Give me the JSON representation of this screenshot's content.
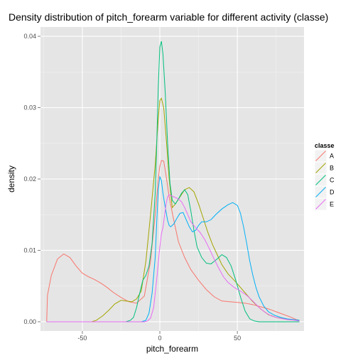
{
  "chart_data": {
    "type": "line",
    "title": "Density distribution of pitch_forearm variable for different activity (classe)",
    "xlabel": "pitch_forearm",
    "ylabel": "density",
    "xlim": [
      -77,
      93
    ],
    "ylim": [
      -0.0013,
      0.0413
    ],
    "x_ticks": [
      -50,
      0,
      50
    ],
    "x_tick_labels": [
      "-50",
      "0",
      "50"
    ],
    "y_ticks": [
      0,
      0.01,
      0.02,
      0.03,
      0.04
    ],
    "y_tick_labels": [
      "0.00",
      "0.01",
      "0.02",
      "0.03",
      "0.04"
    ],
    "grid": true,
    "legend": {
      "title": "classe",
      "position": "right"
    },
    "series": [
      {
        "name": "A",
        "color": "#F8766D",
        "points": [
          [
            -73,
            0
          ],
          [
            -72.5,
            0.0037
          ],
          [
            -70,
            0.0065
          ],
          [
            -66,
            0.0088
          ],
          [
            -62,
            0.0095
          ],
          [
            -58,
            0.009
          ],
          [
            -54,
            0.0078
          ],
          [
            -50,
            0.0068
          ],
          [
            -46,
            0.0063
          ],
          [
            -42,
            0.0059
          ],
          [
            -38,
            0.0054
          ],
          [
            -34,
            0.0048
          ],
          [
            -30,
            0.0041
          ],
          [
            -25,
            0.0034
          ],
          [
            -20,
            0.0028
          ],
          [
            -15,
            0.0026
          ],
          [
            -10,
            0.0036
          ],
          [
            -6,
            0.0085
          ],
          [
            -3,
            0.015
          ],
          [
            -1,
            0.02
          ],
          [
            0,
            0.0218
          ],
          [
            1,
            0.0226
          ],
          [
            2.5,
            0.0225
          ],
          [
            4,
            0.0205
          ],
          [
            6,
            0.0175
          ],
          [
            9,
            0.0142
          ],
          [
            12,
            0.0112
          ],
          [
            16,
            0.009
          ],
          [
            20,
            0.0073
          ],
          [
            25,
            0.0058
          ],
          [
            30,
            0.0045
          ],
          [
            35,
            0.0035
          ],
          [
            40,
            0.0029
          ],
          [
            45,
            0.0028
          ],
          [
            50,
            0.0027
          ],
          [
            55,
            0.0026
          ],
          [
            60,
            0.0024
          ],
          [
            65,
            0.0021
          ],
          [
            70,
            0.0018
          ],
          [
            75,
            0.0014
          ],
          [
            80,
            0.001
          ],
          [
            85,
            0.0006
          ],
          [
            88,
            0.0003
          ],
          [
            90,
            0.0002
          ]
        ]
      },
      {
        "name": "B",
        "color": "#A3A500",
        "points": [
          [
            -73,
            0
          ],
          [
            -44,
            0
          ],
          [
            -41,
            0.0002
          ],
          [
            -37,
            0.0008
          ],
          [
            -33,
            0.0016
          ],
          [
            -29,
            0.0025
          ],
          [
            -25,
            0.003
          ],
          [
            -22,
            0.0029
          ],
          [
            -18,
            0.0028
          ],
          [
            -15,
            0.0032
          ],
          [
            -12,
            0.0043
          ],
          [
            -9,
            0.0085
          ],
          [
            -6,
            0.015
          ],
          [
            -3,
            0.022
          ],
          [
            -1,
            0.0285
          ],
          [
            0,
            0.031
          ],
          [
            1,
            0.0313
          ],
          [
            2.5,
            0.03
          ],
          [
            4,
            0.026
          ],
          [
            6,
            0.02
          ],
          [
            8,
            0.016
          ],
          [
            10,
            0.0165
          ],
          [
            13,
            0.0175
          ],
          [
            16,
            0.0185
          ],
          [
            19,
            0.0188
          ],
          [
            22,
            0.0182
          ],
          [
            25,
            0.0165
          ],
          [
            28,
            0.0145
          ],
          [
            31,
            0.0125
          ],
          [
            34,
            0.0108
          ],
          [
            37,
            0.0094
          ],
          [
            40,
            0.008
          ],
          [
            44,
            0.0067
          ],
          [
            48,
            0.0058
          ],
          [
            52,
            0.0048
          ],
          [
            56,
            0.0038
          ],
          [
            60,
            0.0028
          ],
          [
            65,
            0.0018
          ],
          [
            70,
            0.001
          ],
          [
            75,
            0.0006
          ],
          [
            80,
            0.0004
          ],
          [
            85,
            0.0003
          ],
          [
            90,
            0.0002
          ]
        ]
      },
      {
        "name": "C",
        "color": "#00BF7D",
        "points": [
          [
            -73,
            0
          ],
          [
            -22,
            0
          ],
          [
            -19,
            0.0002
          ],
          [
            -17,
            0.0006
          ],
          [
            -15,
            0.002
          ],
          [
            -13,
            0.004
          ],
          [
            -11,
            0.0058
          ],
          [
            -9,
            0.0065
          ],
          [
            -7,
            0.0078
          ],
          [
            -5,
            0.011
          ],
          [
            -3,
            0.018
          ],
          [
            -2,
            0.025
          ],
          [
            -1,
            0.033
          ],
          [
            0,
            0.0385
          ],
          [
            1,
            0.0393
          ],
          [
            2,
            0.0375
          ],
          [
            3.5,
            0.032
          ],
          [
            5,
            0.025
          ],
          [
            6.5,
            0.0195
          ],
          [
            8,
            0.017
          ],
          [
            10,
            0.0165
          ],
          [
            12,
            0.0172
          ],
          [
            14,
            0.018
          ],
          [
            16,
            0.0185
          ],
          [
            18,
            0.0178
          ],
          [
            20,
            0.0155
          ],
          [
            22,
            0.0128
          ],
          [
            24,
            0.0105
          ],
          [
            27,
            0.009
          ],
          [
            30,
            0.0082
          ],
          [
            33,
            0.0081
          ],
          [
            37,
            0.0088
          ],
          [
            40,
            0.0094
          ],
          [
            43,
            0.009
          ],
          [
            46,
            0.0078
          ],
          [
            49,
            0.0058
          ],
          [
            52,
            0.0035
          ],
          [
            55,
            0.0015
          ],
          [
            58,
            0.0004
          ],
          [
            61,
            0.0001
          ],
          [
            64,
            0
          ],
          [
            90,
            0
          ]
        ]
      },
      {
        "name": "D",
        "color": "#00B0F6",
        "points": [
          [
            -73,
            0
          ],
          [
            -12,
            0
          ],
          [
            -9,
            0.0002
          ],
          [
            -7,
            0.0012
          ],
          [
            -5,
            0.004
          ],
          [
            -3,
            0.009
          ],
          [
            -2,
            0.014
          ],
          [
            -1,
            0.0185
          ],
          [
            0,
            0.0203
          ],
          [
            1,
            0.0198
          ],
          [
            2,
            0.018
          ],
          [
            3.5,
            0.016
          ],
          [
            5,
            0.0142
          ],
          [
            6,
            0.0135
          ],
          [
            7,
            0.0133
          ],
          [
            9,
            0.0137
          ],
          [
            11,
            0.0145
          ],
          [
            13,
            0.0152
          ],
          [
            15,
            0.0153
          ],
          [
            17,
            0.0143
          ],
          [
            19,
            0.0133
          ],
          [
            21,
            0.0126
          ],
          [
            23,
            0.0128
          ],
          [
            25,
            0.0135
          ],
          [
            27,
            0.014
          ],
          [
            30,
            0.014
          ],
          [
            33,
            0.0143
          ],
          [
            36,
            0.015
          ],
          [
            40,
            0.0158
          ],
          [
            44,
            0.0164
          ],
          [
            47,
            0.0167
          ],
          [
            50,
            0.0163
          ],
          [
            52,
            0.0152
          ],
          [
            54,
            0.0133
          ],
          [
            56,
            0.011
          ],
          [
            58,
            0.0085
          ],
          [
            60,
            0.0065
          ],
          [
            62,
            0.0048
          ],
          [
            64,
            0.0035
          ],
          [
            67,
            0.0022
          ],
          [
            70,
            0.0014
          ],
          [
            74,
            0.0009
          ],
          [
            78,
            0.0006
          ],
          [
            82,
            0.0004
          ],
          [
            86,
            0.0003
          ],
          [
            90,
            0.0002
          ]
        ]
      },
      {
        "name": "E",
        "color": "#E76BF3",
        "points": [
          [
            -73,
            0
          ],
          [
            -10,
            0
          ],
          [
            -8,
            0.0001
          ],
          [
            -6,
            0.0005
          ],
          [
            -4,
            0.002
          ],
          [
            -2,
            0.006
          ],
          [
            0,
            0.0105
          ],
          [
            1,
            0.0123
          ],
          [
            2,
            0.0132
          ],
          [
            3,
            0.0148
          ],
          [
            4,
            0.0165
          ],
          [
            5,
            0.0175
          ],
          [
            6,
            0.0178
          ],
          [
            8,
            0.0176
          ],
          [
            10,
            0.0174
          ],
          [
            12,
            0.0172
          ],
          [
            14,
            0.0168
          ],
          [
            16,
            0.016
          ],
          [
            18,
            0.015
          ],
          [
            20,
            0.014
          ],
          [
            23,
            0.0132
          ],
          [
            26,
            0.0125
          ],
          [
            29,
            0.0115
          ],
          [
            32,
            0.0102
          ],
          [
            35,
            0.0088
          ],
          [
            38,
            0.0075
          ],
          [
            41,
            0.0063
          ],
          [
            44,
            0.0055
          ],
          [
            48,
            0.0048
          ],
          [
            52,
            0.0043
          ],
          [
            56,
            0.0037
          ],
          [
            60,
            0.0029
          ],
          [
            64,
            0.002
          ],
          [
            68,
            0.0013
          ],
          [
            72,
            0.0008
          ],
          [
            77,
            0.0005
          ],
          [
            82,
            0.0003
          ],
          [
            87,
            0.0002
          ],
          [
            90,
            0.0001
          ]
        ]
      }
    ]
  }
}
